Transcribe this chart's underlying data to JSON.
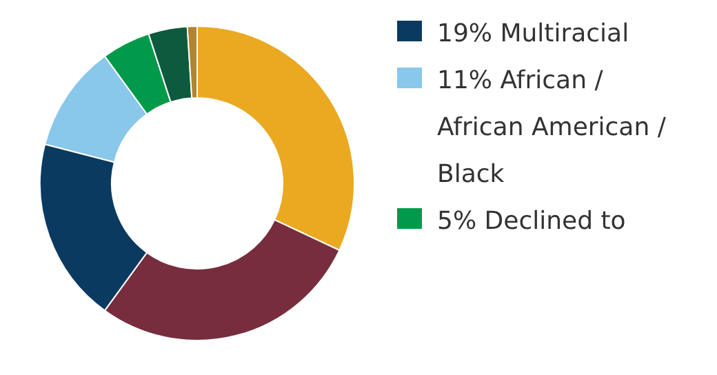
{
  "chart_data": {
    "type": "donut",
    "categories": [
      null,
      null,
      "19% Multiracial",
      "11% African / African American / Black",
      "5% Declined to",
      null,
      null
    ],
    "values": [
      32,
      28,
      19,
      11,
      5,
      4,
      1
    ],
    "colors": [
      "#eaa921",
      "#772d3d",
      "#0b3a60",
      "#89c7eb",
      "#009a4a",
      "#0e5a3e",
      "#b5832c"
    ],
    "legend": "right"
  }
}
